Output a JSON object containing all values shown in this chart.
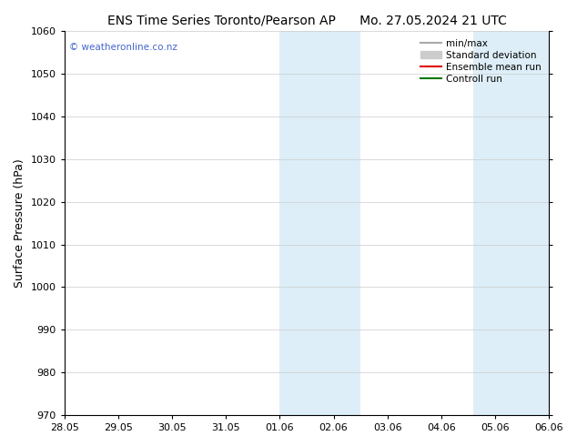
{
  "title": "ENS Time Series Toronto/Pearson AP      Mo. 27.05.2024 21 UTC",
  "ylabel": "Surface Pressure (hPa)",
  "ylim": [
    970,
    1060
  ],
  "yticks": [
    970,
    980,
    990,
    1000,
    1010,
    1020,
    1030,
    1040,
    1050,
    1060
  ],
  "xtick_labels": [
    "28.05",
    "29.05",
    "30.05",
    "31.05",
    "01.06",
    "02.06",
    "03.06",
    "04.06",
    "05.06",
    "06.06"
  ],
  "xtick_positions": [
    0,
    1,
    2,
    3,
    4,
    5,
    6,
    7,
    8,
    9
  ],
  "xlim": [
    0,
    9
  ],
  "shaded_bands": [
    {
      "x_start": 4.0,
      "x_end": 5.0
    },
    {
      "x_start": 5.0,
      "x_end": 6.0
    },
    {
      "x_start": 7.5,
      "x_end": 8.0
    },
    {
      "x_start": 8.0,
      "x_end": 8.5
    }
  ],
  "shaded_color": "#ddeef8",
  "watermark_text": "© weatheronline.co.nz",
  "watermark_color": "#4466cc",
  "legend_entries": [
    {
      "label": "min/max",
      "color": "#aaaaaa",
      "type": "line",
      "linewidth": 1.5
    },
    {
      "label": "Standard deviation",
      "color": "#cccccc",
      "type": "patch"
    },
    {
      "label": "Ensemble mean run",
      "color": "#dd0000",
      "type": "line",
      "linewidth": 1.5
    },
    {
      "label": "Controll run",
      "color": "#007700",
      "type": "line",
      "linewidth": 1.5
    }
  ],
  "bg_color": "#ffffff",
  "axes_bg_color": "#ffffff",
  "grid_color": "#cccccc",
  "tick_label_fontsize": 8,
  "axis_label_fontsize": 9,
  "title_fontsize": 10,
  "right_spine": true
}
